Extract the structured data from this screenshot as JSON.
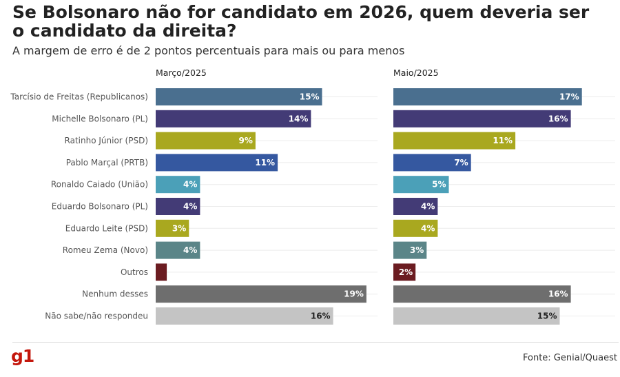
{
  "header": {
    "title": "Se Bolsonaro não for candidato em 2026, quem deveria ser o candidato da direita?",
    "subtitle": "A margem de erro é de 2 pontos percentuais para mais ou para menos"
  },
  "footer": {
    "logo": "g1",
    "source": "Fonte: Genial/Quaest"
  },
  "chart_data": {
    "type": "bar",
    "orientation": "horizontal",
    "categories": [
      "Tarcísio de Freitas (Republicanos)",
      "Michelle Bolsonaro (PL)",
      "Ratinho Júnior (PSD)",
      "Pablo Marçal (PRTB)",
      "Ronaldo Caiado (União)",
      "Eduardo Bolsonaro (PL)",
      "Eduardo Leite (PSD)",
      "Romeu Zema (Novo)",
      "Outros",
      "Nenhum desses",
      "Não sabe/não respondeu"
    ],
    "colors": [
      "#4a6f8f",
      "#433b76",
      "#a9a81f",
      "#3558a0",
      "#4ba0b8",
      "#433b76",
      "#a9a81f",
      "#5b8588",
      "#6b1c21",
      "#6e6e6e",
      "#c4c4c4"
    ],
    "dark_label_categories": [
      10
    ],
    "grid": true,
    "xlim": [
      0,
      20
    ],
    "series": [
      {
        "name": "Março/2025",
        "values": [
          15,
          14,
          9,
          11,
          4,
          4,
          3,
          4,
          1,
          19,
          16
        ],
        "labels": [
          "15%",
          "14%",
          "9%",
          "11%",
          "4%",
          "4%",
          "3%",
          "4%",
          "",
          "19%",
          "16%"
        ]
      },
      {
        "name": "Maio/2025",
        "values": [
          17,
          16,
          11,
          7,
          5,
          4,
          4,
          3,
          2,
          16,
          15
        ],
        "labels": [
          "17%",
          "16%",
          "11%",
          "7%",
          "5%",
          "4%",
          "4%",
          "3%",
          "2%",
          "16%",
          "15%"
        ]
      }
    ]
  }
}
